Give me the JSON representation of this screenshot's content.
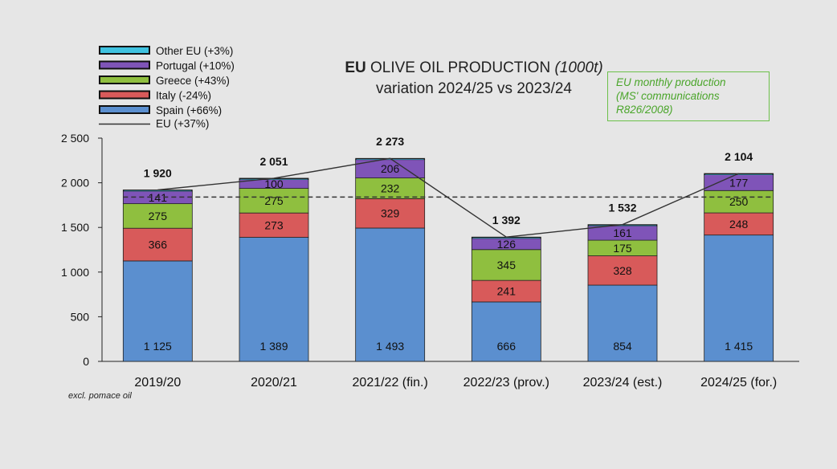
{
  "chart_data": {
    "type": "bar",
    "stacked": true,
    "title_bold": "EU",
    "title_main": " OLIVE OIL PRODUCTION ",
    "title_unit": "(1000t)",
    "subtitle": "variation 2024/25 vs 2023/24",
    "note_lines": [
      "EU monthly production",
      "(MS' communications",
      "R826/2008)"
    ],
    "footnote": "excl. pomace oil",
    "categories": [
      "2019/20",
      "2020/21",
      "2021/22 (fin.)",
      "2022/23 (prov.)",
      "2023/24 (est.)",
      "2024/25 (for.)"
    ],
    "series": [
      {
        "name": "Spain (+66%)",
        "color": "#5b8fcf",
        "values": [
          1125,
          1389,
          1493,
          666,
          854,
          1415
        ],
        "labels": [
          "1 125",
          "1 389",
          "1 493",
          "666",
          "854",
          "1 415"
        ]
      },
      {
        "name": "Italy (-24%)",
        "color": "#d85a5a",
        "values": [
          366,
          273,
          329,
          241,
          328,
          248
        ],
        "labels": [
          "366",
          "273",
          "329",
          "241",
          "328",
          "248"
        ]
      },
      {
        "name": "Greece (+43%)",
        "color": "#8fbf3f",
        "values": [
          275,
          275,
          232,
          345,
          175,
          250
        ],
        "labels": [
          "275",
          "275",
          "232",
          "345",
          "175",
          "250"
        ]
      },
      {
        "name": "Portugal (+10%)",
        "color": "#7f54b8",
        "values": [
          141,
          100,
          206,
          126,
          161,
          177
        ],
        "labels": [
          "141",
          "100",
          "206",
          "126",
          "161",
          "177"
        ]
      },
      {
        "name": "Other EU (+3%)",
        "color": "#3fc2e0",
        "values": [
          13,
          14,
          13,
          14,
          14,
          14
        ],
        "labels": []
      }
    ],
    "totals": {
      "name": "EU (+37%)",
      "values": [
        1920,
        2051,
        2273,
        1392,
        1532,
        2104
      ],
      "labels": [
        "1 920",
        "2 051",
        "2 273",
        "1 392",
        "1 532",
        "2 104"
      ]
    },
    "average_line": {
      "value": 1840,
      "style": "dashed"
    },
    "ylim": [
      0,
      2500
    ],
    "yticks": [
      0,
      500,
      1000,
      1500,
      2000,
      2500
    ],
    "ytick_labels": [
      "0",
      "500",
      "1 000",
      "1 500",
      "2 000",
      "2 500"
    ],
    "legend_position": "top-left",
    "grid": false
  }
}
